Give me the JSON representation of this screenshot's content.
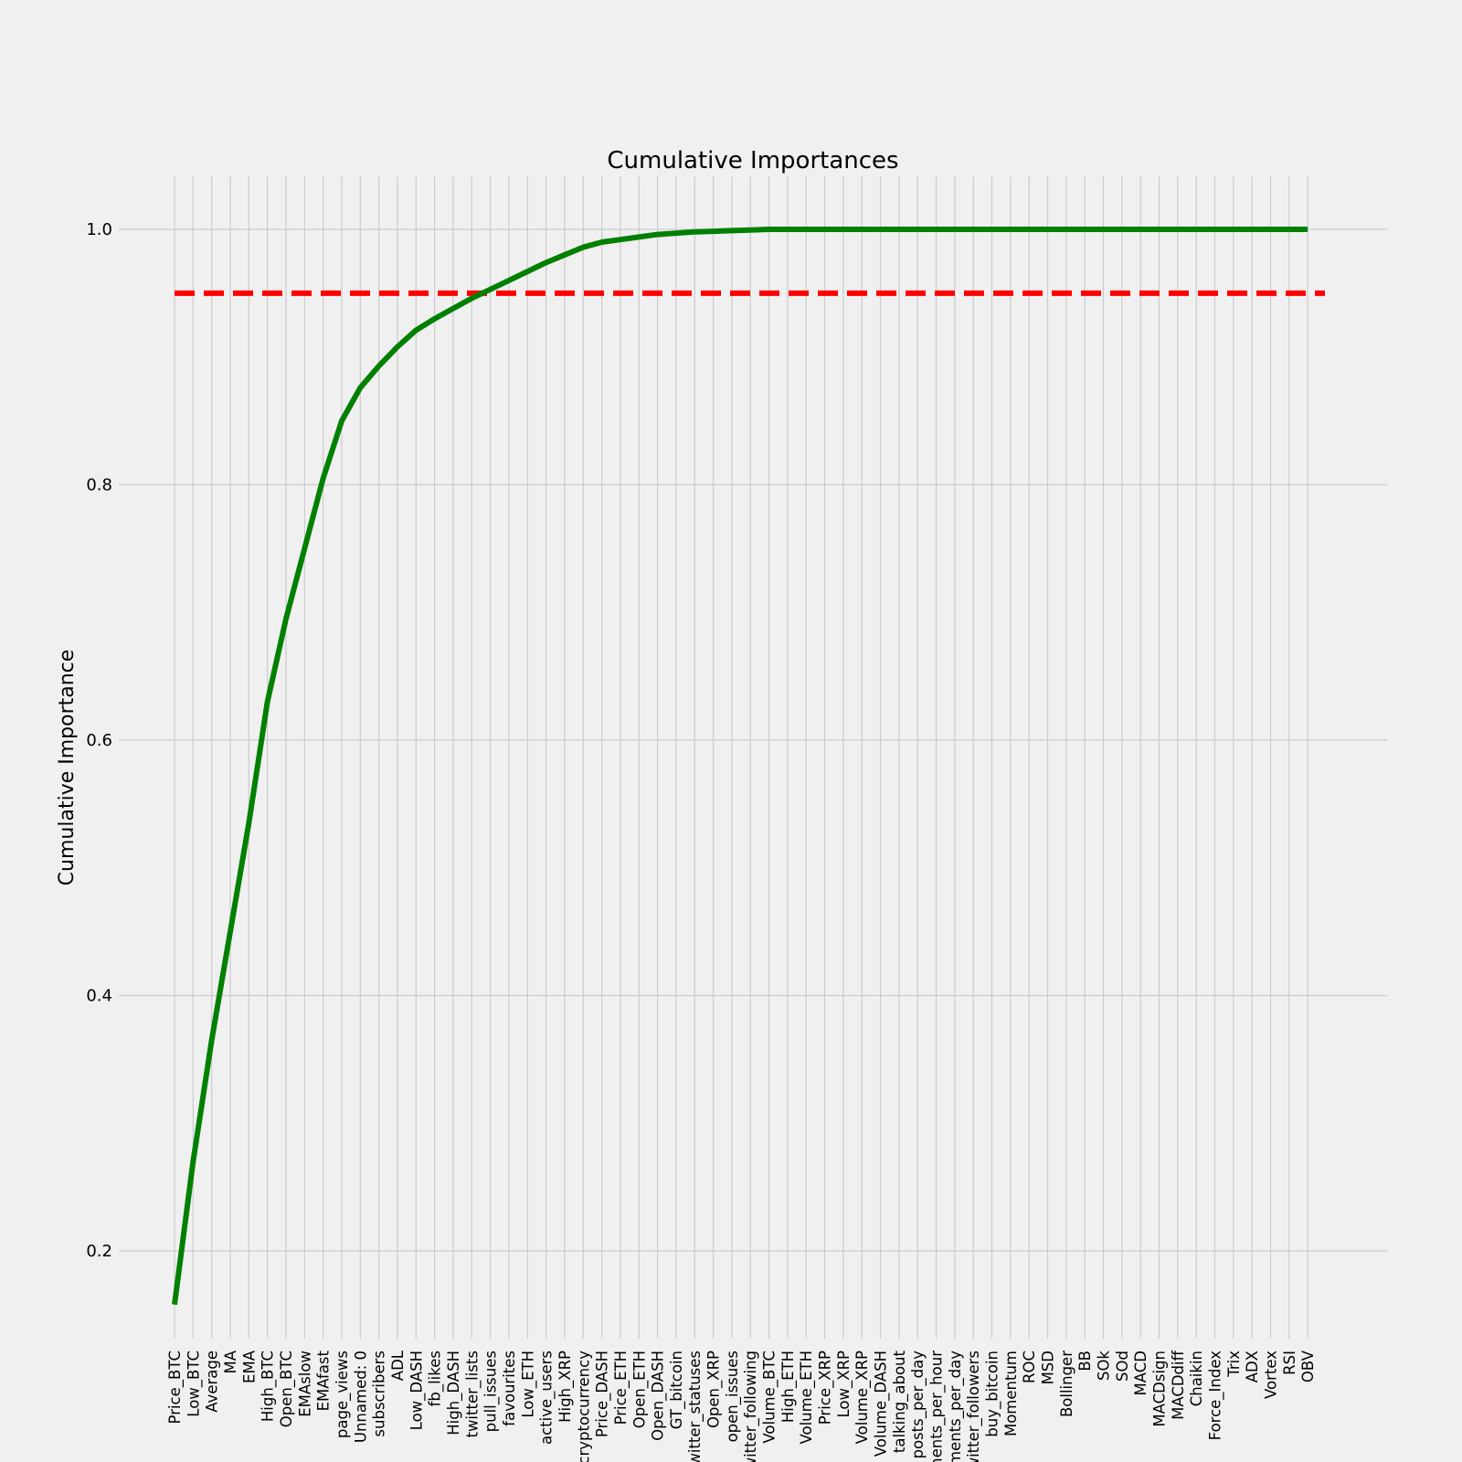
{
  "chart_data": {
    "type": "line",
    "title": "Cumulative Importances",
    "xlabel": "",
    "ylabel": "Cumulative Importance",
    "ylim": [
      0.12,
      1.04
    ],
    "yticks": [
      "0.2",
      "0.4",
      "0.6",
      "0.8",
      "1.0"
    ],
    "grid": true,
    "categories": [
      "Price_BTC",
      "Low_BTC",
      "Average",
      "MA",
      "EMA",
      "High_BTC",
      "Open_BTC",
      "EMAslow",
      "EMAfast",
      "page_views",
      "Unnamed: 0",
      "subscribers",
      "ADL",
      "Low_DASH",
      "fb_likes",
      "High_DASH",
      "twitter_lists",
      "pull_issues",
      "favourites",
      "Low_ETH",
      "active_users",
      "High_XRP",
      "cryptocurrency",
      "Price_DASH",
      "Price_ETH",
      "Open_ETH",
      "Open_DASH",
      "GT_bitcoin",
      "twitter_statuses",
      "Open_XRP",
      "open_issues",
      "twitter_following",
      "Volume_BTC",
      "High_ETH",
      "Volume_ETH",
      "Price_XRP",
      "Low_XRP",
      "Volume_XRP",
      "Volume_DASH",
      "talking_about",
      "posts_per_day",
      "comments_per_hour",
      "comments_per_day",
      "twitter_followers",
      "buy_bitcoin",
      "Momentum",
      "ROC",
      "MSD",
      "Bollinger",
      "BB",
      "SOk",
      "SOd",
      "MACD",
      "MACDsign",
      "MACDdiff",
      "Chaikin",
      "Force_Index",
      "Trix",
      "ADX",
      "Vortex",
      "RSI",
      "OBV"
    ],
    "series": [
      {
        "color": "#008000",
        "values": [
          0.158,
          0.27,
          0.365,
          0.45,
          0.535,
          0.63,
          0.695,
          0.75,
          0.805,
          0.85,
          0.876,
          0.893,
          0.908,
          0.921,
          0.93,
          0.938,
          0.946,
          0.953,
          0.96,
          0.967,
          0.974,
          0.98,
          0.986,
          0.99,
          0.992,
          0.994,
          0.996,
          0.997,
          0.998,
          0.9985,
          0.999,
          0.9995,
          1.0,
          1.0,
          1.0,
          1.0,
          1.0,
          1.0,
          1.0,
          1.0,
          1.0,
          1.0,
          1.0,
          1.0,
          1.0,
          1.0,
          1.0,
          1.0,
          1.0,
          1.0,
          1.0,
          1.0,
          1.0,
          1.0,
          1.0,
          1.0,
          1.0,
          1.0,
          1.0,
          1.0,
          1.0,
          1.0
        ]
      }
    ],
    "threshold": {
      "value": 0.95,
      "color": "#ff0000",
      "style": "dashed"
    }
  }
}
